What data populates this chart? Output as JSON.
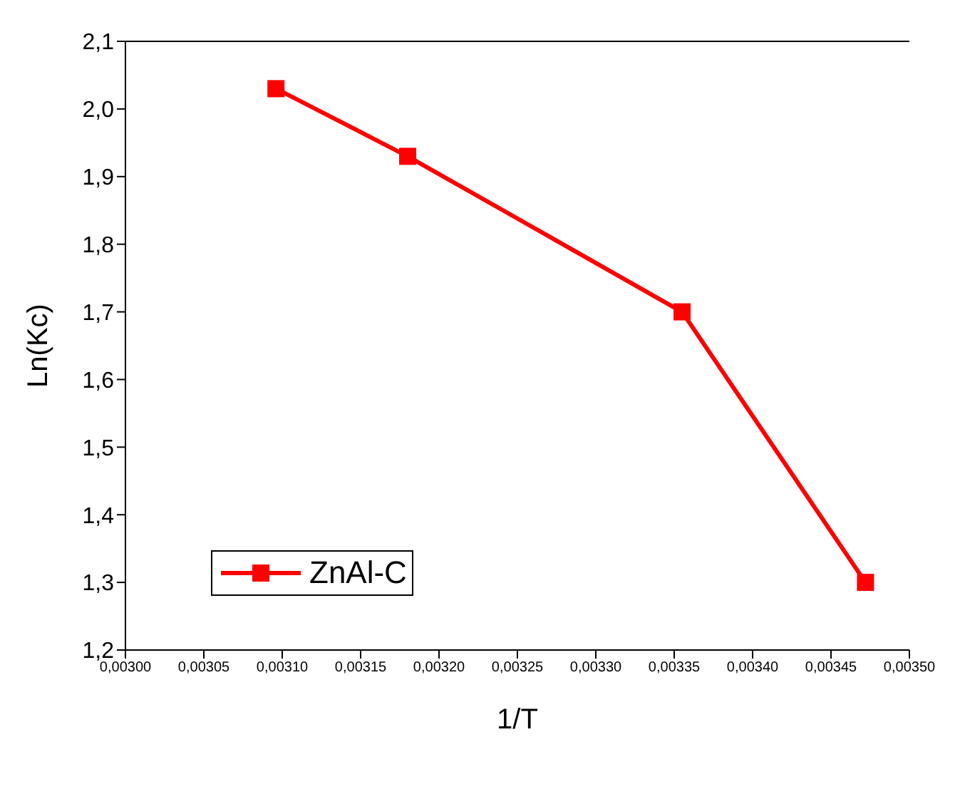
{
  "chart_data": {
    "type": "line",
    "xlabel": "1/T",
    "ylabel": "Ln(Kc)",
    "x": [
      0.003096,
      0.00318,
      0.003355,
      0.003472
    ],
    "series": [
      {
        "name": "ZnAl-C",
        "color": "#ff0000",
        "values": [
          2.03,
          1.93,
          1.7,
          1.3
        ]
      }
    ],
    "xlim": [
      0.003,
      0.0035
    ],
    "xticks": [
      {
        "value": 0.003,
        "label": "0,00300"
      },
      {
        "value": 0.00305,
        "label": "0,00305"
      },
      {
        "value": 0.0031,
        "label": "0,00310"
      },
      {
        "value": 0.00315,
        "label": "0,00315"
      },
      {
        "value": 0.0032,
        "label": "0,00320"
      },
      {
        "value": 0.00325,
        "label": "0,00325"
      },
      {
        "value": 0.0033,
        "label": "0,00330"
      },
      {
        "value": 0.00335,
        "label": "0,00335"
      },
      {
        "value": 0.0034,
        "label": "0,00340"
      },
      {
        "value": 0.00345,
        "label": "0,00345"
      },
      {
        "value": 0.0035,
        "label": "0,00350"
      }
    ],
    "ylim": [
      1.2,
      2.1
    ],
    "yticks": [
      {
        "value": 1.2,
        "label": "1,2"
      },
      {
        "value": 1.3,
        "label": "1,3"
      },
      {
        "value": 1.4,
        "label": "1,4"
      },
      {
        "value": 1.5,
        "label": "1,5"
      },
      {
        "value": 1.6,
        "label": "1,6"
      },
      {
        "value": 1.7,
        "label": "1,7"
      },
      {
        "value": 1.8,
        "label": "1,8"
      },
      {
        "value": 1.9,
        "label": "1,9"
      },
      {
        "value": 2.0,
        "label": "2,0"
      },
      {
        "value": 2.1,
        "label": "2,1"
      }
    ],
    "grid": false,
    "legend": "bottom left",
    "marker": "square",
    "line_style": "solid"
  }
}
